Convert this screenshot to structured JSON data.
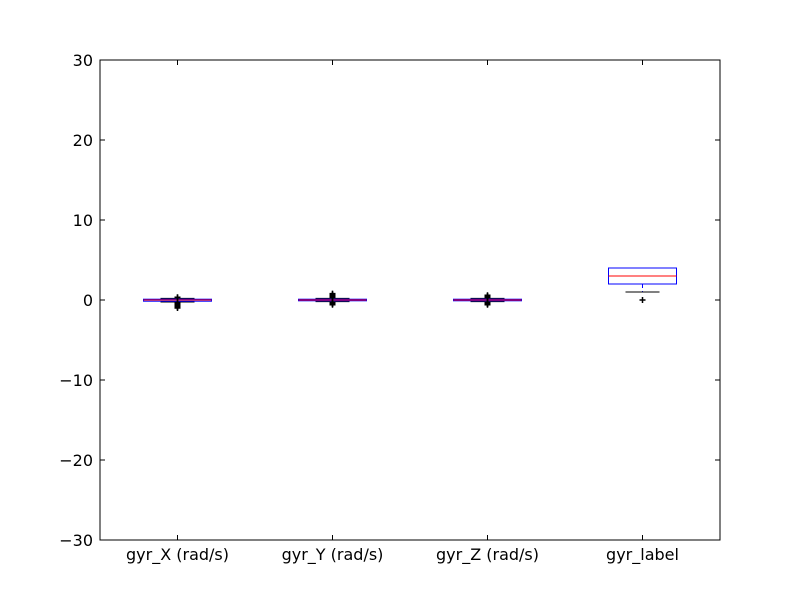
{
  "chart_data": {
    "type": "box",
    "title": "",
    "xlabel": "",
    "ylabel": "",
    "ylim": [
      -30,
      30
    ],
    "y_ticks": [
      -30,
      -20,
      -10,
      0,
      10,
      20,
      30
    ],
    "y_tick_labels": [
      "−30",
      "−20",
      "−10",
      "0",
      "10",
      "20",
      "30"
    ],
    "grid": false,
    "categories": [
      "gyr_X (rad/s)",
      "gyr_Y (rad/s)",
      "gyr_Z (rad/s)",
      "gyr_label"
    ],
    "boxes": [
      {
        "q1": -0.15,
        "median": 0.0,
        "q3": 0.1,
        "whisker_low": -0.25,
        "whisker_high": 0.2,
        "outliers": [
          -1.0,
          -0.9,
          -0.8,
          -0.7,
          -0.6,
          -0.5,
          -0.45,
          -0.4,
          0.3,
          0.35
        ]
      },
      {
        "q1": -0.1,
        "median": 0.0,
        "q3": 0.1,
        "whisker_low": -0.2,
        "whisker_high": 0.2,
        "outliers": [
          -0.6,
          -0.5,
          -0.4,
          -0.3,
          0.3,
          0.4,
          0.5,
          0.6,
          0.7,
          0.8
        ]
      },
      {
        "q1": -0.1,
        "median": 0.0,
        "q3": 0.1,
        "whisker_low": -0.2,
        "whisker_high": 0.2,
        "outliers": [
          -0.6,
          -0.5,
          -0.4,
          -0.3,
          0.3,
          0.4,
          0.5,
          0.6
        ]
      },
      {
        "q1": 2.0,
        "median": 3.0,
        "q3": 4.0,
        "whisker_low": 1.0,
        "whisker_high": 4.0,
        "outliers": [
          0.0
        ]
      }
    ],
    "colors": {
      "box": "#0000ff",
      "median": "#ff0000",
      "whisker": "#0000ff",
      "cap": "#000000",
      "outlier": "#000000",
      "axis": "#000000"
    }
  }
}
